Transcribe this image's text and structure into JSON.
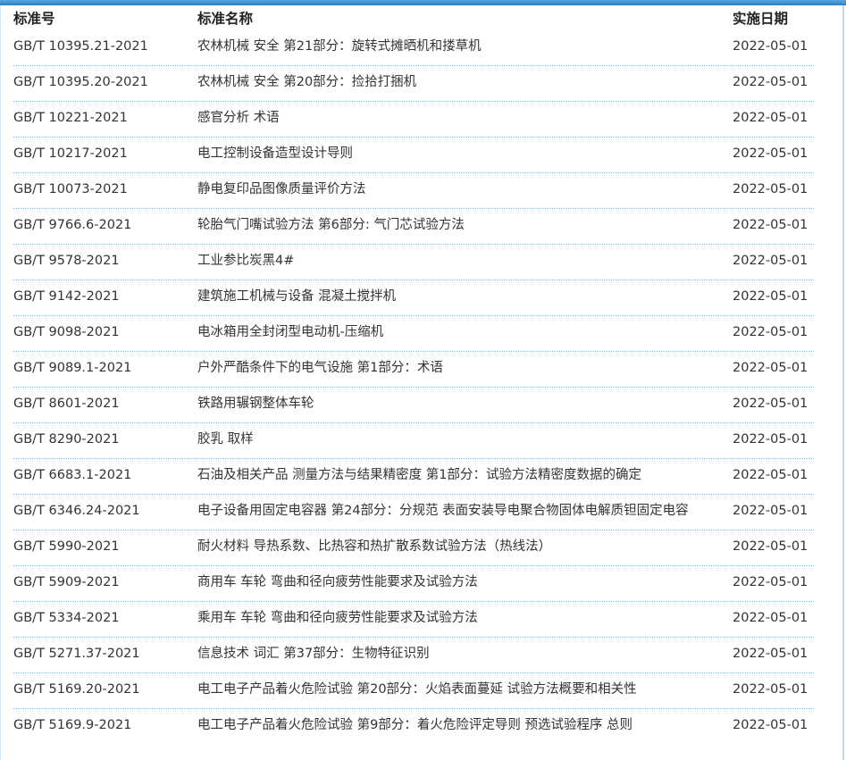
{
  "colors": {
    "accent": "#2a7fc4",
    "divider": "#8cc2e8",
    "text": "#333333"
  },
  "table": {
    "headers": [
      "标准号",
      "标准名称",
      "实施日期"
    ],
    "rows": [
      {
        "code": "GB/T 10395.21-2021",
        "name": "农林机械 安全 第21部分：旋转式摊晒机和搂草机",
        "date": "2022-05-01"
      },
      {
        "code": "GB/T 10395.20-2021",
        "name": "农林机械 安全 第20部分：捡拾打捆机",
        "date": "2022-05-01"
      },
      {
        "code": "GB/T 10221-2021",
        "name": "感官分析 术语",
        "date": "2022-05-01"
      },
      {
        "code": "GB/T 10217-2021",
        "name": "电工控制设备造型设计导则",
        "date": "2022-05-01"
      },
      {
        "code": "GB/T 10073-2021",
        "name": "静电复印品图像质量评价方法",
        "date": "2022-05-01"
      },
      {
        "code": "GB/T 9766.6-2021",
        "name": "轮胎气门嘴试验方法 第6部分: 气门芯试验方法",
        "date": "2022-05-01"
      },
      {
        "code": "GB/T 9578-2021",
        "name": "工业参比炭黑4#",
        "date": "2022-05-01"
      },
      {
        "code": "GB/T 9142-2021",
        "name": "建筑施工机械与设备 混凝土搅拌机",
        "date": "2022-05-01"
      },
      {
        "code": "GB/T 9098-2021",
        "name": "电冰箱用全封闭型电动机-压缩机",
        "date": "2022-05-01"
      },
      {
        "code": "GB/T 9089.1-2021",
        "name": "户外严酷条件下的电气设施 第1部分：术语",
        "date": "2022-05-01"
      },
      {
        "code": "GB/T 8601-2021",
        "name": "铁路用辗钢整体车轮",
        "date": "2022-05-01"
      },
      {
        "code": "GB/T 8290-2021",
        "name": "胶乳 取样",
        "date": "2022-05-01"
      },
      {
        "code": "GB/T 6683.1-2021",
        "name": "石油及相关产品 测量方法与结果精密度 第1部分：试验方法精密度数据的确定",
        "date": "2022-05-01"
      },
      {
        "code": "GB/T 6346.24-2021",
        "name": "电子设备用固定电容器 第24部分：分规范 表面安装导电聚合物固体电解质钽固定电容",
        "date": "2022-05-01"
      },
      {
        "code": "GB/T 5990-2021",
        "name": "耐火材料 导热系数、比热容和热扩散系数试验方法（热线法）",
        "date": "2022-05-01"
      },
      {
        "code": "GB/T 5909-2021",
        "name": "商用车 车轮 弯曲和径向疲劳性能要求及试验方法",
        "date": "2022-05-01"
      },
      {
        "code": "GB/T 5334-2021",
        "name": "乘用车 车轮 弯曲和径向疲劳性能要求及试验方法",
        "date": "2022-05-01"
      },
      {
        "code": "GB/T 5271.37-2021",
        "name": "信息技术 词汇 第37部分：生物特征识别",
        "date": "2022-05-01"
      },
      {
        "code": "GB/T 5169.20-2021",
        "name": "电工电子产品着火危险试验 第20部分：火焰表面蔓延 试验方法概要和相关性",
        "date": "2022-05-01"
      },
      {
        "code": "GB/T 5169.9-2021",
        "name": "电工电子产品着火危险试验 第9部分：着火危险评定导则 预选试验程序 总则",
        "date": "2022-05-01"
      }
    ]
  }
}
